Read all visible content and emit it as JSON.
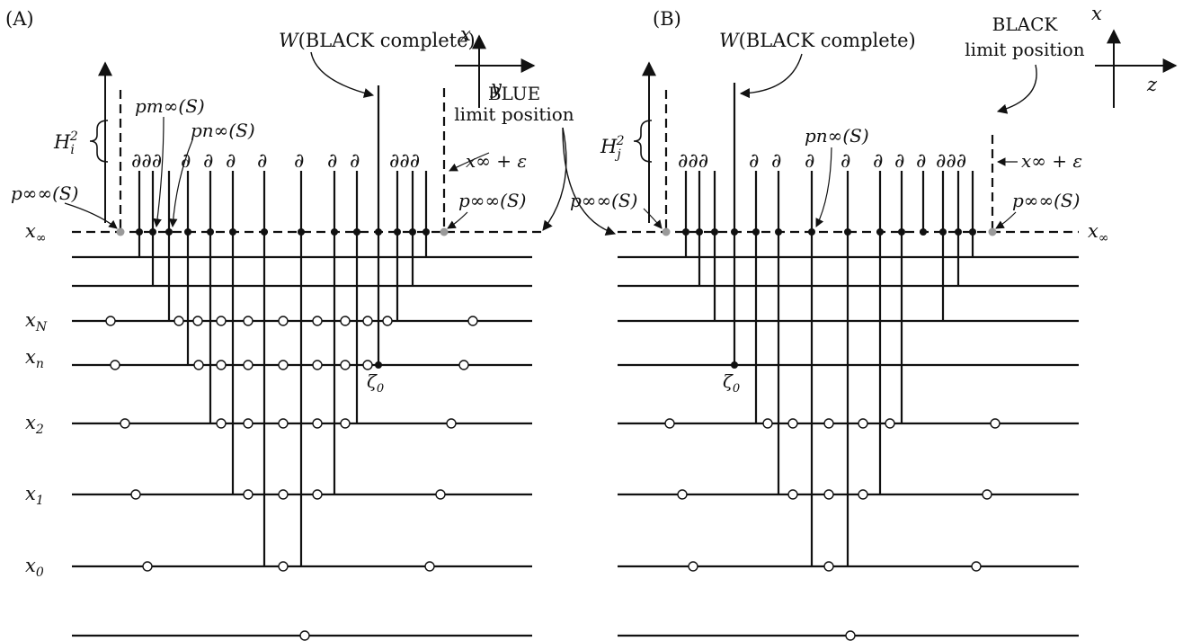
{
  "colors": {
    "ink": "#111111",
    "gray_dot": "#9a9a9a"
  },
  "panels": [
    {
      "id": "A",
      "label": "(A)",
      "axes": {
        "vertical": "x",
        "horizontal": "y"
      },
      "level_labels": [
        "x",
        "x",
        "x",
        "x",
        "x"
      ],
      "level_subs": [
        "N",
        "n",
        "2",
        "1",
        "0"
      ],
      "x_inf": "x",
      "x_inf_sub": "∞",
      "h_label": "H",
      "h_sub": "i",
      "h_sup": "2",
      "w_label_a": "W",
      "w_label_b": "(BLACK complete)",
      "limit_top": "BLUE",
      "limit_bottom": "limit position",
      "eps_label": "x∞ + ε",
      "zeta": "ζ",
      "zeta_sub": "0",
      "p_inf_left": "p∞∞(S)",
      "p_inf_right": "p∞∞(S)",
      "p_m": "pm∞(S)",
      "p_n": "pn∞(S)",
      "partials_left": "∂∂∂",
      "partials_right": "∂∂∂",
      "partial": "∂"
    },
    {
      "id": "B",
      "label": "(B)",
      "axes": {
        "vertical": "x",
        "horizontal": "z"
      },
      "x_inf": "x",
      "x_inf_sub": "∞",
      "h_label": "H",
      "h_sub": "j",
      "h_sup": "2",
      "w_label_a": "W",
      "w_label_b": "(BLACK complete)",
      "limit_top": "BLACK",
      "limit_bottom": "limit position",
      "eps_label": "x∞ + ε",
      "zeta": "ζ",
      "zeta_sub": "0",
      "p_inf_left": "p∞∞(S)",
      "p_inf_right": "p∞∞(S)",
      "p_n": "pn∞(S)",
      "partials_left": "∂∂∂",
      "partials_right": "∂∂∂",
      "partial": "∂"
    }
  ]
}
